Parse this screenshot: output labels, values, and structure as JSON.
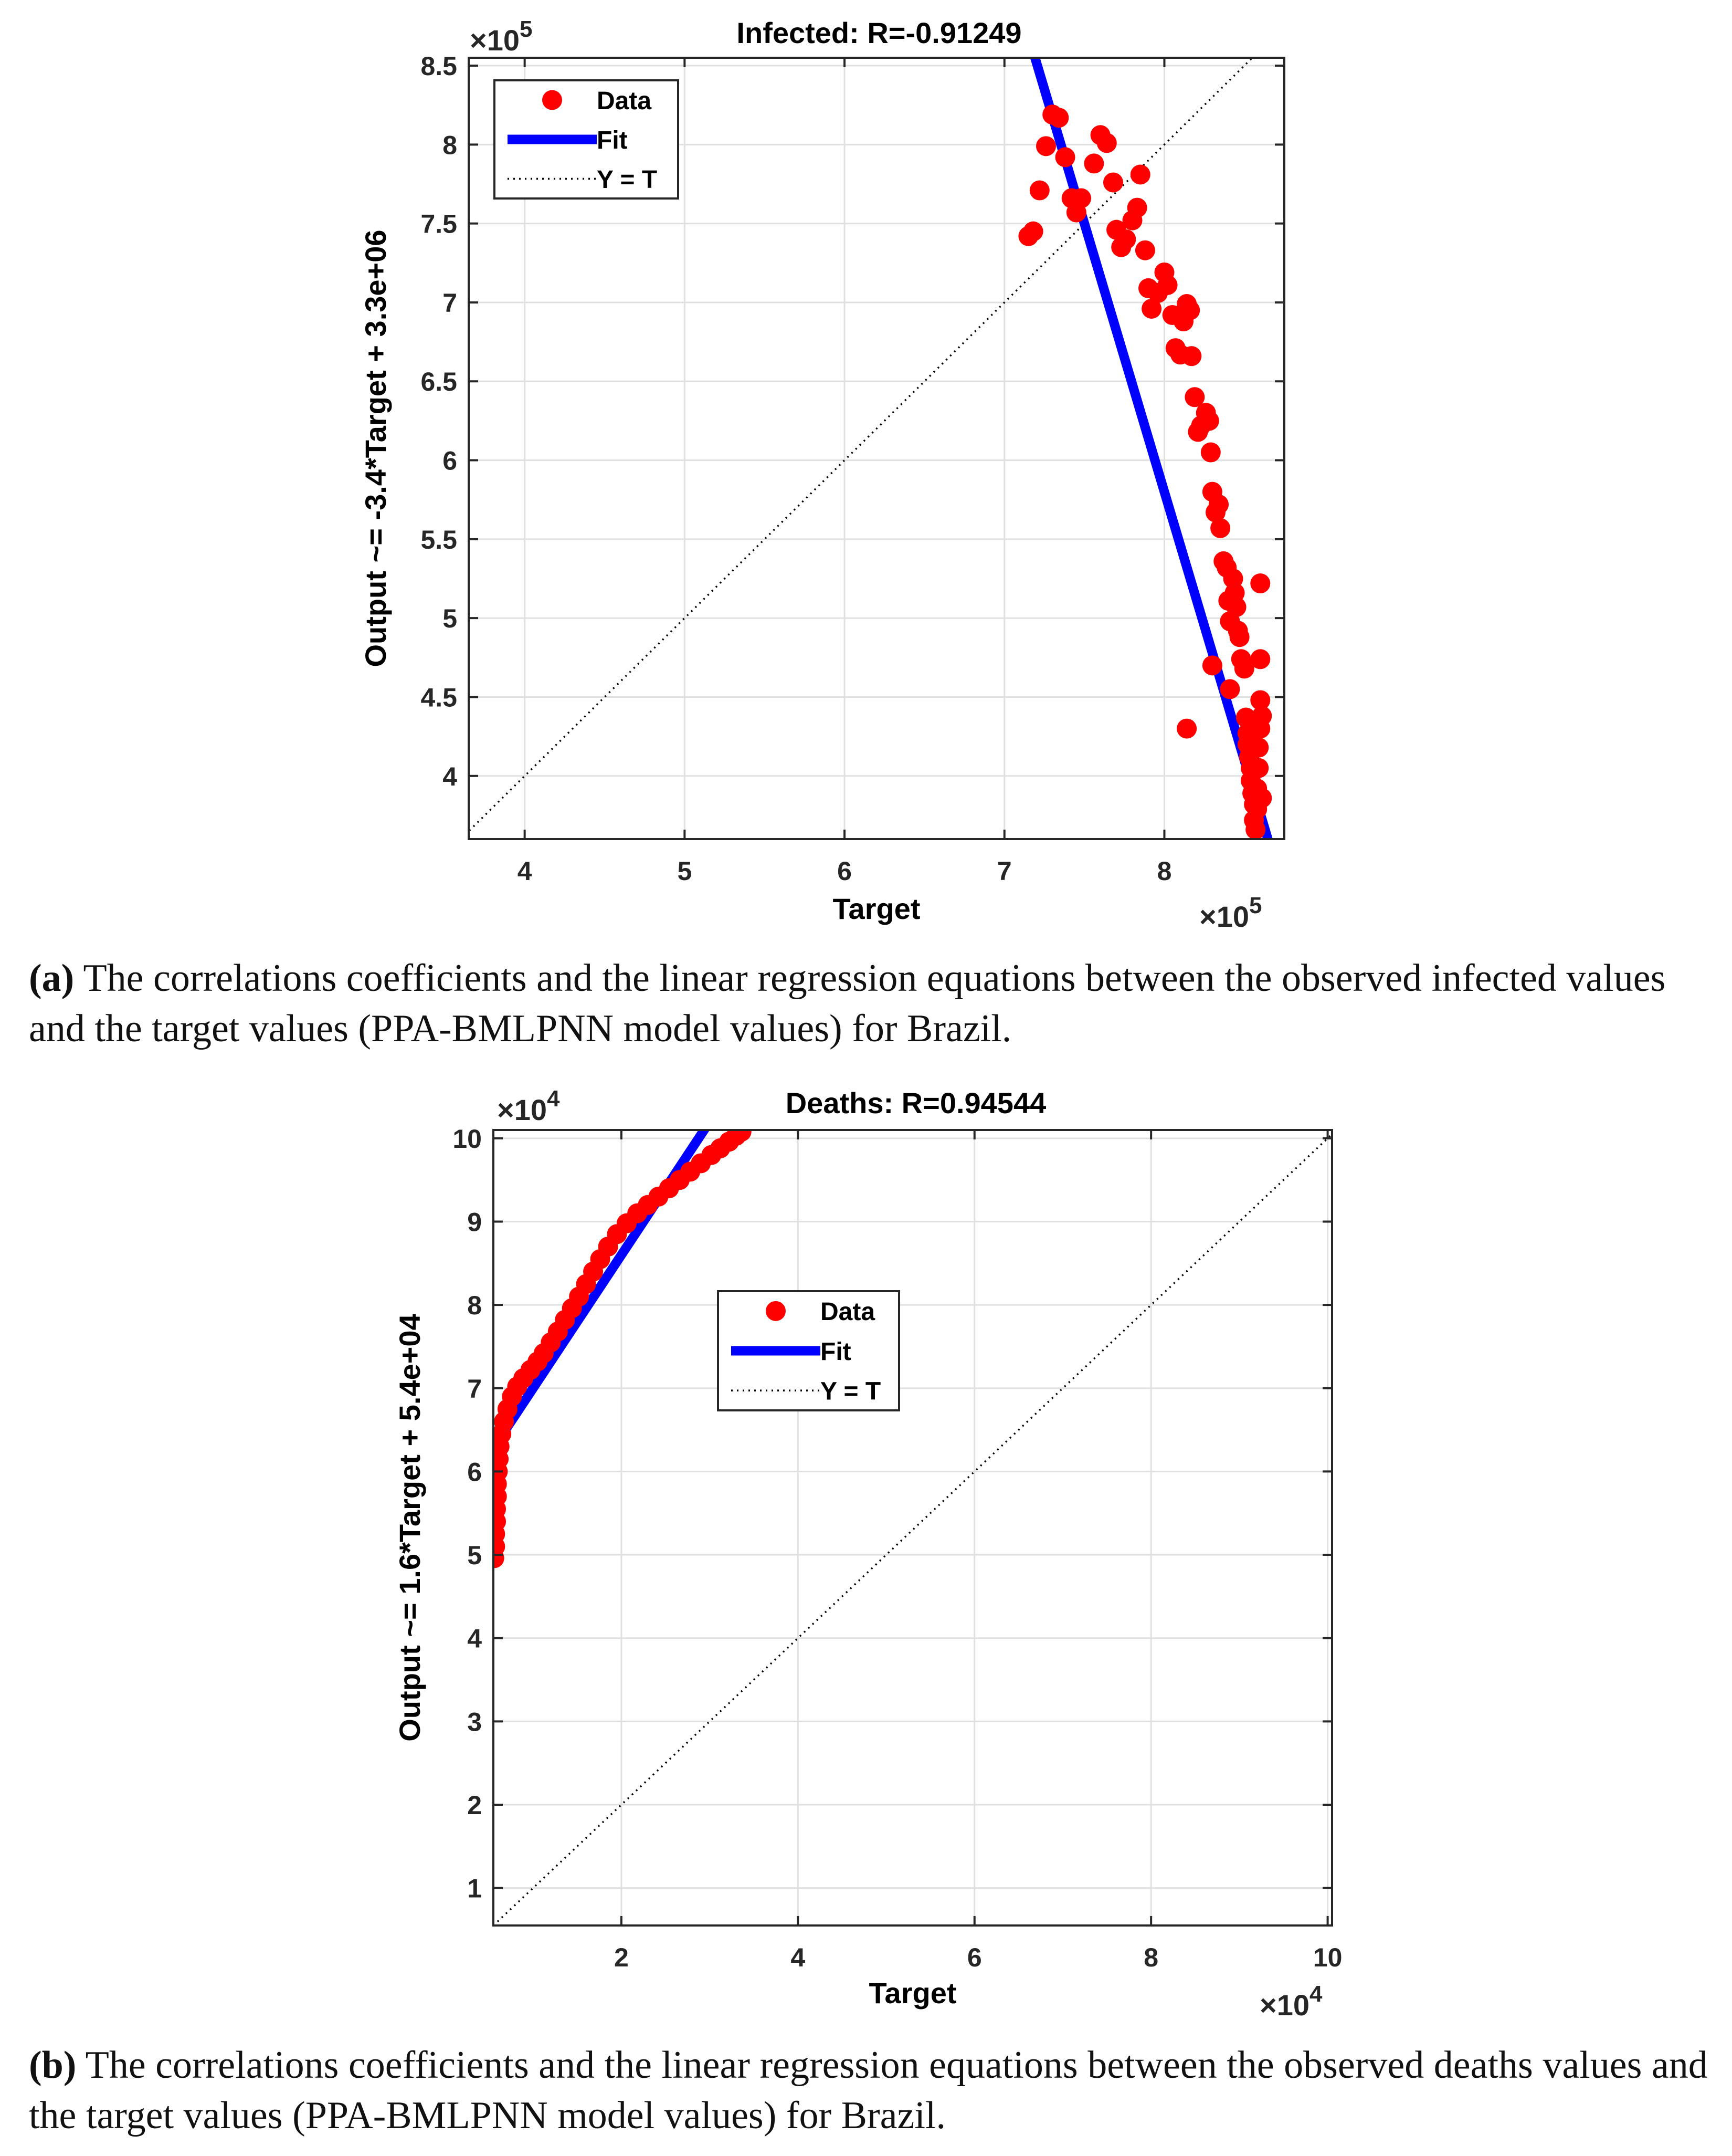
{
  "colors": {
    "data": "#ff0000",
    "fit": "#0000ff",
    "identity": "#000000",
    "grid": "#e0e0e0"
  },
  "chart_data": [
    {
      "type": "scatter",
      "title": "Infected: R=-0.91249",
      "xlabel": "Target",
      "ylabel": "Output ~= -3.4*Target + 3.3e+06",
      "x_exponent": "5",
      "y_exponent": "5",
      "multiplier_base": "×10",
      "xlim": [
        3.65,
        8.75
      ],
      "ylim": [
        3.6,
        8.55
      ],
      "xticks": [
        4,
        5,
        6,
        7,
        8
      ],
      "yticks": [
        4,
        4.5,
        5,
        5.5,
        6,
        6.5,
        7,
        7.5,
        8,
        8.5
      ],
      "legend": [
        "Data",
        "Fit",
        "Y = T"
      ],
      "legend_position": "top-left",
      "fit": {
        "slope": -3.4,
        "intercept": 33
      },
      "series": [
        {
          "name": "Data",
          "points": [
            [
              7.15,
              7.42
            ],
            [
              7.18,
              7.45
            ],
            [
              7.22,
              7.71
            ],
            [
              7.26,
              7.99
            ],
            [
              7.3,
              8.19
            ],
            [
              7.34,
              8.17
            ],
            [
              7.38,
              7.92
            ],
            [
              7.42,
              7.66
            ],
            [
              7.45,
              7.57
            ],
            [
              7.48,
              7.66
            ],
            [
              7.56,
              7.88
            ],
            [
              7.6,
              8.06
            ],
            [
              7.64,
              8.01
            ],
            [
              7.68,
              7.76
            ],
            [
              7.7,
              7.46
            ],
            [
              7.73,
              7.35
            ],
            [
              7.76,
              7.4
            ],
            [
              7.8,
              7.52
            ],
            [
              7.83,
              7.6
            ],
            [
              7.85,
              7.81
            ],
            [
              7.88,
              7.33
            ],
            [
              7.9,
              7.09
            ],
            [
              7.92,
              6.96
            ],
            [
              7.96,
              7.06
            ],
            [
              8.0,
              7.19
            ],
            [
              8.02,
              7.11
            ],
            [
              8.05,
              6.92
            ],
            [
              8.07,
              6.71
            ],
            [
              8.1,
              6.67
            ],
            [
              8.12,
              6.88
            ],
            [
              8.14,
              6.99
            ],
            [
              8.16,
              6.95
            ],
            [
              8.17,
              6.66
            ],
            [
              8.19,
              6.4
            ],
            [
              8.21,
              6.18
            ],
            [
              8.23,
              6.22
            ],
            [
              8.26,
              6.3
            ],
            [
              8.28,
              6.25
            ],
            [
              8.29,
              6.05
            ],
            [
              8.3,
              5.8
            ],
            [
              8.32,
              5.67
            ],
            [
              8.34,
              5.72
            ],
            [
              8.35,
              5.57
            ],
            [
              8.37,
              5.36
            ],
            [
              8.39,
              5.32
            ],
            [
              8.4,
              5.11
            ],
            [
              8.41,
              4.98
            ],
            [
              8.43,
              5.25
            ],
            [
              8.44,
              5.16
            ],
            [
              8.45,
              5.07
            ],
            [
              8.46,
              4.92
            ],
            [
              8.47,
              4.88
            ],
            [
              8.48,
              4.74
            ],
            [
              8.5,
              4.68
            ],
            [
              8.41,
              4.55
            ],
            [
              8.3,
              4.7
            ],
            [
              8.14,
              4.3
            ],
            [
              8.51,
              4.37
            ],
            [
              8.52,
              4.27
            ],
            [
              8.52,
              4.2
            ],
            [
              8.53,
              4.12
            ],
            [
              8.54,
              4.05
            ],
            [
              8.54,
              3.97
            ],
            [
              8.55,
              3.89
            ],
            [
              8.56,
              3.82
            ],
            [
              8.56,
              3.72
            ],
            [
              8.57,
              3.66
            ],
            [
              8.58,
              3.79
            ],
            [
              8.58,
              3.92
            ],
            [
              8.59,
              4.05
            ],
            [
              8.59,
              4.18
            ],
            [
              8.6,
              4.3
            ],
            [
              8.6,
              4.48
            ],
            [
              8.6,
              4.74
            ],
            [
              8.61,
              3.86
            ],
            [
              8.61,
              4.38
            ],
            [
              8.6,
              5.22
            ]
          ]
        }
      ]
    },
    {
      "type": "scatter",
      "title": "Deaths: R=0.94544",
      "xlabel": "Target",
      "ylabel": "Output ~= 1.6*Target + 5.4e+04",
      "x_exponent": "4",
      "y_exponent": "4",
      "multiplier_base": "×10",
      "xlim": [
        0.55,
        10.05
      ],
      "ylim": [
        0.55,
        10.1
      ],
      "xticks": [
        2,
        4,
        6,
        8,
        10
      ],
      "yticks": [
        1,
        2,
        3,
        4,
        5,
        6,
        7,
        8,
        9,
        10
      ],
      "legend": [
        "Data",
        "Fit",
        "Y = T"
      ],
      "legend_position": "center",
      "fit": {
        "slope": 1.6,
        "intercept": 5.4
      },
      "series": [
        {
          "name": "Data",
          "points": [
            [
              0.56,
              4.96
            ],
            [
              0.57,
              5.1
            ],
            [
              0.57,
              5.25
            ],
            [
              0.58,
              5.4
            ],
            [
              0.58,
              5.55
            ],
            [
              0.59,
              5.7
            ],
            [
              0.59,
              5.85
            ],
            [
              0.6,
              6.0
            ],
            [
              0.61,
              6.15
            ],
            [
              0.62,
              6.3
            ],
            [
              0.64,
              6.45
            ],
            [
              0.67,
              6.6
            ],
            [
              0.71,
              6.75
            ],
            [
              0.76,
              6.9
            ],
            [
              0.82,
              7.02
            ],
            [
              0.89,
              7.12
            ],
            [
              0.97,
              7.22
            ],
            [
              1.05,
              7.32
            ],
            [
              1.12,
              7.42
            ],
            [
              1.2,
              7.55
            ],
            [
              1.28,
              7.68
            ],
            [
              1.36,
              7.82
            ],
            [
              1.44,
              7.96
            ],
            [
              1.52,
              8.1
            ],
            [
              1.6,
              8.25
            ],
            [
              1.68,
              8.4
            ],
            [
              1.76,
              8.55
            ],
            [
              1.85,
              8.7
            ],
            [
              1.95,
              8.85
            ],
            [
              2.06,
              8.98
            ],
            [
              2.18,
              9.1
            ],
            [
              2.3,
              9.2
            ],
            [
              2.42,
              9.3
            ],
            [
              2.54,
              9.4
            ],
            [
              2.66,
              9.5
            ],
            [
              2.78,
              9.6
            ],
            [
              2.9,
              9.7
            ],
            [
              3.02,
              9.8
            ],
            [
              3.12,
              9.88
            ],
            [
              3.22,
              9.96
            ],
            [
              3.3,
              10.03
            ],
            [
              3.36,
              10.08
            ]
          ]
        }
      ]
    }
  ],
  "captions": [
    {
      "label": "(a)",
      "text": " The correlations coefficients and the linear regression equations between the observed infected values and the target values (PPA-BMLPNN model values) for Brazil."
    },
    {
      "label": "(b)",
      "text": " The correlations coefficients and the linear regression equations between the observed deaths values and the target values (PPA-BMLPNN model values) for Brazil."
    }
  ]
}
